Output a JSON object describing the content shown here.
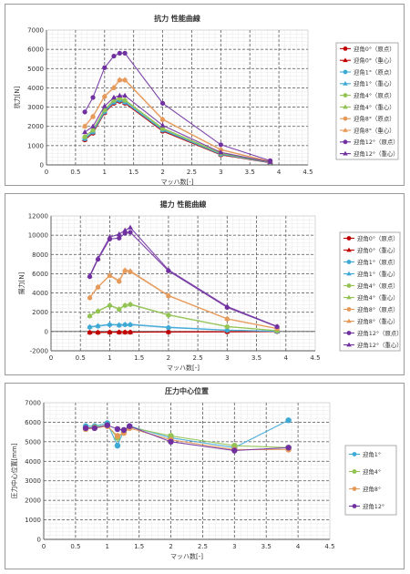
{
  "chart_data": [
    {
      "type": "line",
      "title": "抗力 性能曲線",
      "xlabel": "マッハ数[-]",
      "ylabel": "抗力[N]",
      "xlim": [
        0,
        4.5
      ],
      "ylim": [
        0,
        7000
      ],
      "xticks": [
        "0",
        "0.5",
        "1",
        "1.5",
        "2",
        "2.5",
        "3",
        "3.5",
        "4",
        "4.5"
      ],
      "yticks": [
        "0",
        "1000",
        "2000",
        "3000",
        "4000",
        "5000",
        "6000",
        "7000"
      ],
      "legend": "right",
      "grid": true,
      "x": [
        0.66,
        0.8,
        1.0,
        1.16,
        1.26,
        1.35,
        2.0,
        3.0,
        3.85
      ],
      "series": [
        {
          "name": "迎角0°（原点）",
          "color": "#c00000",
          "marker": "circle",
          "values": [
            1300,
            1650,
            2700,
            3200,
            3300,
            3200,
            1750,
            520,
            110
          ]
        },
        {
          "name": "迎角0°（重心）",
          "color": "#c00000",
          "marker": "triangle",
          "values": [
            1320,
            1680,
            2730,
            3230,
            3330,
            3230,
            1780,
            540,
            120
          ]
        },
        {
          "name": "迎角1°（原点）",
          "color": "#3fa9d6",
          "marker": "circle",
          "values": [
            1350,
            1700,
            2750,
            3250,
            3350,
            3250,
            1800,
            550,
            120
          ]
        },
        {
          "name": "迎角1°（重心）",
          "color": "#3fa9d6",
          "marker": "triangle",
          "values": [
            1370,
            1730,
            2780,
            3280,
            3380,
            3280,
            1830,
            570,
            130
          ]
        },
        {
          "name": "迎角4°（原点）",
          "color": "#92c353",
          "marker": "circle",
          "values": [
            1450,
            1800,
            2850,
            3350,
            3450,
            3350,
            1880,
            600,
            140
          ]
        },
        {
          "name": "迎角4°（重心）",
          "color": "#92c353",
          "marker": "triangle",
          "values": [
            1470,
            1830,
            2880,
            3380,
            3480,
            3380,
            1910,
            620,
            150
          ]
        },
        {
          "name": "迎角8°（原点）",
          "color": "#e69a5a",
          "marker": "circle",
          "values": [
            2000,
            2500,
            3550,
            4000,
            4400,
            4400,
            2350,
            780,
            170
          ]
        },
        {
          "name": "迎角8°（重心）",
          "color": "#e69a5a",
          "marker": "triangle",
          "values": [
            2020,
            2530,
            3580,
            4030,
            4430,
            4430,
            2380,
            800,
            180
          ]
        },
        {
          "name": "迎角12°（原点）",
          "color": "#7030a0",
          "marker": "circle",
          "values": [
            2750,
            3500,
            5050,
            5650,
            5800,
            5800,
            3200,
            1050,
            220
          ]
        },
        {
          "name": "迎角12°（重心）",
          "color": "#7030a0",
          "marker": "triangle",
          "values": [
            1700,
            2000,
            3050,
            3500,
            3600,
            3600,
            2050,
            650,
            150
          ]
        }
      ]
    },
    {
      "type": "line",
      "title": "揚力 性能曲線",
      "xlabel": "マッハ数[-]",
      "ylabel": "揚力[N]",
      "xlim": [
        0,
        4.5
      ],
      "ylim": [
        -2000,
        12000
      ],
      "xticks": [
        "0",
        "0.5",
        "1",
        "1.5",
        "2",
        "2.5",
        "3",
        "3.5",
        "4",
        "4.5"
      ],
      "yticks": [
        "-2000",
        "0",
        "2000",
        "4000",
        "6000",
        "8000",
        "10000",
        "12000"
      ],
      "legend": "right",
      "grid": true,
      "x": [
        0.66,
        0.8,
        1.0,
        1.16,
        1.26,
        1.35,
        2.0,
        3.0,
        3.85
      ],
      "series": [
        {
          "name": "迎角0°（原点）",
          "color": "#c00000",
          "marker": "circle",
          "values": [
            -100,
            -100,
            -80,
            -80,
            -80,
            -80,
            -50,
            -30,
            -10
          ]
        },
        {
          "name": "迎角0°（重心）",
          "color": "#c00000",
          "marker": "triangle",
          "values": [
            -80,
            -80,
            -60,
            -60,
            -60,
            -60,
            -40,
            -20,
            0
          ]
        },
        {
          "name": "迎角1°（原点）",
          "color": "#3fa9d6",
          "marker": "circle",
          "values": [
            450,
            550,
            700,
            650,
            700,
            700,
            400,
            120,
            20
          ]
        },
        {
          "name": "迎角1°（重心）",
          "color": "#3fa9d6",
          "marker": "triangle",
          "values": [
            500,
            600,
            750,
            700,
            750,
            750,
            450,
            150,
            30
          ]
        },
        {
          "name": "迎角4°（原点）",
          "color": "#92c353",
          "marker": "circle",
          "values": [
            1600,
            2100,
            2700,
            2300,
            2700,
            2800,
            1700,
            500,
            80
          ]
        },
        {
          "name": "迎角4°（重心）",
          "color": "#92c353",
          "marker": "triangle",
          "values": [
            1650,
            2150,
            2750,
            2350,
            2750,
            2850,
            1750,
            530,
            90
          ]
        },
        {
          "name": "迎角8°（原点）",
          "color": "#e69a5a",
          "marker": "circle",
          "values": [
            3500,
            4600,
            5800,
            5200,
            6300,
            6200,
            3700,
            1300,
            300
          ]
        },
        {
          "name": "迎角8°（重心）",
          "color": "#e69a5a",
          "marker": "triangle",
          "values": [
            3550,
            4650,
            5850,
            5300,
            6400,
            6300,
            3750,
            1330,
            310
          ]
        },
        {
          "name": "迎角12°（原点）",
          "color": "#7030a0",
          "marker": "circle",
          "values": [
            5700,
            7500,
            9600,
            9700,
            10200,
            10300,
            6300,
            2500,
            500
          ]
        },
        {
          "name": "迎角12°（重心）",
          "color": "#7030a0",
          "marker": "triangle",
          "values": [
            5800,
            7600,
            9800,
            10100,
            10500,
            10800,
            6400,
            2600,
            530
          ]
        }
      ]
    },
    {
      "type": "line",
      "title": "圧力中心位置",
      "xlabel": "マッハ数[-]",
      "ylabel": "圧力中心位置[mm]",
      "xlim": [
        0,
        4.5
      ],
      "ylim": [
        0,
        7000
      ],
      "xticks": [
        "0",
        "0.5",
        "1",
        "1.5",
        "2",
        "2.5",
        "3",
        "3.5",
        "4",
        "4.5"
      ],
      "yticks": [
        "0",
        "1000",
        "2000",
        "3000",
        "4000",
        "5000",
        "6000",
        "7000"
      ],
      "legend": "right",
      "grid": true,
      "x": [
        0.66,
        0.8,
        1.0,
        1.16,
        1.26,
        1.35,
        2.0,
        3.0,
        3.85
      ],
      "series": [
        {
          "name": "迎角1°",
          "color": "#3fa9d6",
          "marker": "circle",
          "values": [
            5800,
            5800,
            5950,
            4800,
            5600,
            5800,
            5200,
            4700,
            6100
          ]
        },
        {
          "name": "迎角4°",
          "color": "#92c353",
          "marker": "circle",
          "values": [
            5700,
            5750,
            5850,
            5200,
            5500,
            5750,
            5300,
            4800,
            4700
          ]
        },
        {
          "name": "迎角8°",
          "color": "#e69a5a",
          "marker": "circle",
          "values": [
            5650,
            5700,
            5800,
            5300,
            5450,
            5700,
            5100,
            4600,
            4600
          ]
        },
        {
          "name": "迎角12°",
          "color": "#7030a0",
          "marker": "circle",
          "values": [
            5700,
            5700,
            5850,
            5650,
            5600,
            5800,
            5000,
            4550,
            4700
          ]
        }
      ]
    }
  ]
}
